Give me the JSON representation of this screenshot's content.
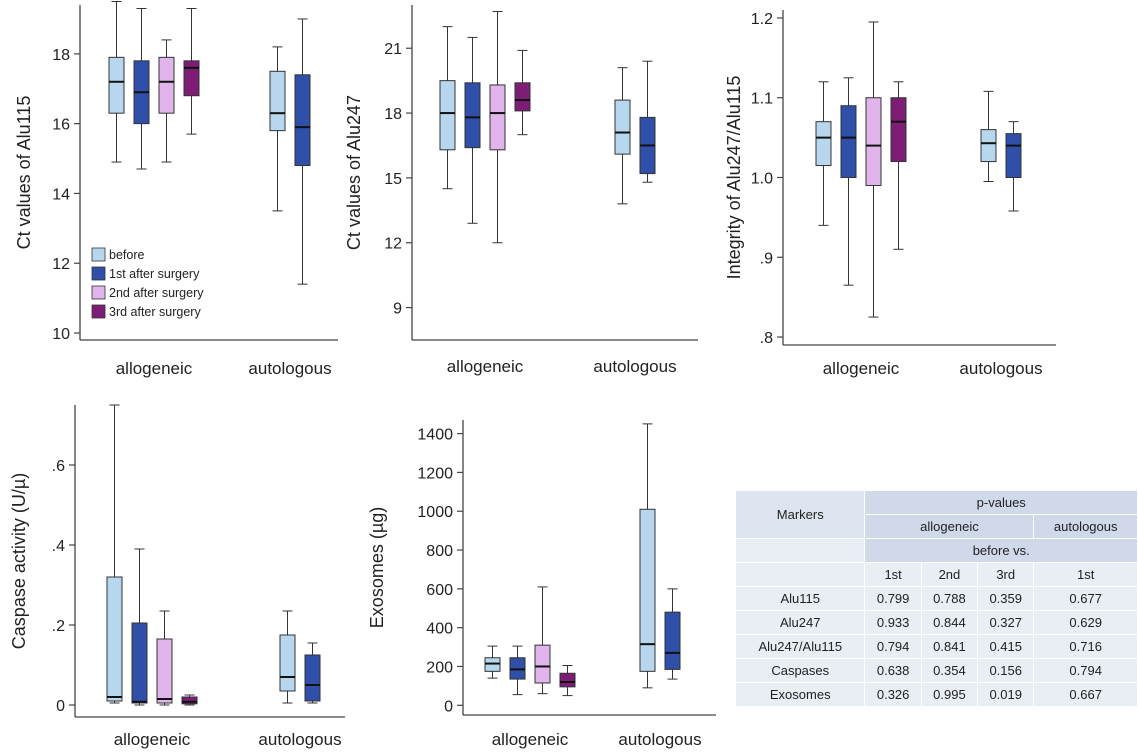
{
  "colors": {
    "before": "#b7d7ef",
    "1st after surgery": "#2f4fa8",
    "2nd after surgery": "#e2b4ec",
    "3rd after surgery": "#7d1d76",
    "axis": "#444444",
    "text": "#222222",
    "table_header_bg": "#d0d9ea",
    "table_body_bg": "#e9edf4"
  },
  "chart_data": [
    {
      "type": "boxplot",
      "ylabel": "Ct values of Alu115",
      "categories": [
        "allogeneic",
        "autologous"
      ],
      "ylim": [
        9.8,
        19.4
      ],
      "yticks": [
        10,
        12,
        14,
        16,
        18
      ],
      "ytick_labels": [
        "10",
        "12",
        "14",
        "16",
        "18"
      ],
      "legend": [
        "before",
        "1st after surgery",
        "2nd after surgery",
        "3rd after surgery"
      ],
      "legend_position": "bottom-left",
      "series": [
        {
          "name": "before",
          "boxes": [
            [
              14.9,
              16.3,
              17.2,
              17.9,
              19.5
            ],
            [
              13.5,
              15.8,
              16.3,
              17.5,
              18.2
            ]
          ]
        },
        {
          "name": "1st after surgery",
          "boxes": [
            [
              14.7,
              16.0,
              16.9,
              17.8,
              19.3
            ],
            [
              11.4,
              14.8,
              15.9,
              17.4,
              19.0
            ]
          ]
        },
        {
          "name": "2nd after surgery",
          "boxes": [
            [
              14.9,
              16.3,
              17.2,
              17.9,
              18.4
            ],
            null
          ]
        },
        {
          "name": "3rd after surgery",
          "boxes": [
            [
              15.7,
              16.8,
              17.6,
              17.8,
              19.3
            ],
            null
          ]
        }
      ]
    },
    {
      "type": "boxplot",
      "ylabel": "Ct values of Alu247",
      "categories": [
        "allogeneic",
        "autologous"
      ],
      "ylim": [
        7.5,
        23.0
      ],
      "yticks": [
        9,
        12,
        15,
        18,
        21
      ],
      "ytick_labels": [
        "9",
        "12",
        "15",
        "18",
        "21"
      ],
      "series": [
        {
          "name": "before",
          "boxes": [
            [
              14.5,
              16.3,
              18.0,
              19.5,
              22.0
            ],
            [
              13.8,
              16.1,
              17.1,
              18.6,
              20.1
            ]
          ]
        },
        {
          "name": "1st after surgery",
          "boxes": [
            [
              12.9,
              16.4,
              17.8,
              19.4,
              21.5
            ],
            [
              14.8,
              15.2,
              16.5,
              17.8,
              20.4
            ]
          ]
        },
        {
          "name": "2nd after surgery",
          "boxes": [
            [
              12.0,
              16.3,
              18.0,
              19.3,
              22.7
            ],
            null
          ]
        },
        {
          "name": "3rd after surgery",
          "boxes": [
            [
              17.0,
              18.1,
              18.6,
              19.4,
              20.9
            ],
            null
          ]
        }
      ]
    },
    {
      "type": "boxplot",
      "ylabel": "Integrity of Alu247/Alu115",
      "categories": [
        "allogeneic",
        "autologous"
      ],
      "ylim": [
        0.79,
        1.21
      ],
      "yticks": [
        0.8,
        0.9,
        1.0,
        1.1,
        1.2
      ],
      "ytick_labels": [
        ".8",
        ".9",
        "1.0",
        "1.1",
        "1.2"
      ],
      "series": [
        {
          "name": "before",
          "boxes": [
            [
              0.94,
              1.015,
              1.05,
              1.07,
              1.12
            ],
            [
              0.995,
              1.02,
              1.043,
              1.06,
              1.108
            ]
          ]
        },
        {
          "name": "1st after surgery",
          "boxes": [
            [
              0.865,
              1.0,
              1.05,
              1.09,
              1.125
            ],
            [
              0.958,
              1.0,
              1.04,
              1.055,
              1.07
            ]
          ]
        },
        {
          "name": "2nd after surgery",
          "boxes": [
            [
              0.825,
              0.99,
              1.04,
              1.1,
              1.195
            ],
            null
          ]
        },
        {
          "name": "3rd after surgery",
          "boxes": [
            [
              0.91,
              1.02,
              1.07,
              1.1,
              1.12
            ],
            null
          ]
        }
      ]
    },
    {
      "type": "boxplot",
      "ylabel": "Caspase activity (U/µ)",
      "categories": [
        "allogeneic",
        "autologous"
      ],
      "ylim": [
        -0.03,
        0.75
      ],
      "yticks": [
        0,
        0.2,
        0.4,
        0.6
      ],
      "ytick_labels": [
        "0",
        ".2",
        ".4",
        ".6"
      ],
      "series": [
        {
          "name": "before",
          "boxes": [
            [
              0.005,
              0.01,
              0.02,
              0.32,
              0.75
            ],
            [
              0.005,
              0.035,
              0.07,
              0.175,
              0.235
            ]
          ]
        },
        {
          "name": "1st after surgery",
          "boxes": [
            [
              0.0,
              0.005,
              0.008,
              0.205,
              0.39
            ],
            [
              0.005,
              0.01,
              0.05,
              0.125,
              0.155
            ]
          ]
        },
        {
          "name": "2nd after surgery",
          "boxes": [
            [
              0.0,
              0.005,
              0.015,
              0.165,
              0.235
            ],
            null
          ]
        },
        {
          "name": "3rd after surgery",
          "boxes": [
            [
              0.0,
              0.003,
              0.008,
              0.02,
              0.025
            ],
            null
          ]
        }
      ]
    },
    {
      "type": "boxplot",
      "ylabel": "Exosomes (µg)",
      "categories": [
        "allogeneic",
        "autologous"
      ],
      "ylim": [
        -50,
        1470
      ],
      "yticks": [
        0,
        200,
        400,
        600,
        800,
        1000,
        1200,
        1400
      ],
      "ytick_labels": [
        "0",
        "200",
        "400",
        "600",
        "800",
        "1000",
        "1200",
        "1400"
      ],
      "series": [
        {
          "name": "before",
          "boxes": [
            [
              140,
              175,
              215,
              245,
              305
            ],
            [
              90,
              175,
              315,
              1010,
              1450
            ]
          ]
        },
        {
          "name": "1st after surgery",
          "boxes": [
            [
              55,
              135,
              185,
              245,
              305
            ],
            [
              135,
              185,
              270,
              480,
              600
            ]
          ]
        },
        {
          "name": "2nd after surgery",
          "boxes": [
            [
              60,
              115,
              200,
              310,
              610
            ],
            null
          ]
        },
        {
          "name": "3rd after surgery",
          "boxes": [
            [
              50,
              95,
              120,
              165,
              205
            ],
            null
          ]
        }
      ]
    }
  ],
  "table": {
    "markers_label": "Markers",
    "pvalues_label": "p-values",
    "allogeneic_label": "allogeneic",
    "autologous_label": "autologous",
    "before_vs_label": "before vs.",
    "col_headers": [
      "1st",
      "2nd",
      "3rd",
      "1st"
    ],
    "rows": [
      {
        "marker": "Alu115",
        "values": [
          "0.799",
          "0.788",
          "0.359",
          "0.677"
        ]
      },
      {
        "marker": "Alu247",
        "values": [
          "0.933",
          "0.844",
          "0.327",
          "0.629"
        ]
      },
      {
        "marker": "Alu247/Alu115",
        "values": [
          "0.794",
          "0.841",
          "0.415",
          "0.716"
        ]
      },
      {
        "marker": "Caspases",
        "values": [
          "0.638",
          "0.354",
          "0.156",
          "0.794"
        ]
      },
      {
        "marker": "Exosomes",
        "values": [
          "0.326",
          "0.995",
          "0.019",
          "0.667"
        ]
      }
    ]
  }
}
